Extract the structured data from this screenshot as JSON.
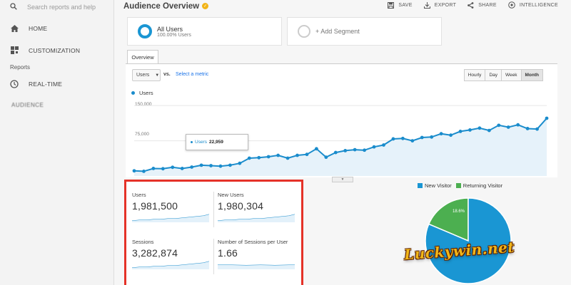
{
  "sidebar": {
    "search_placeholder": "Search reports and help",
    "items": [
      {
        "label": "HOME",
        "icon": "home-icon"
      },
      {
        "label": "CUSTOMIZATION",
        "icon": "dashboard-icon"
      }
    ],
    "section_header": "Reports",
    "realtime": {
      "label": "REAL-TIME",
      "icon": "clock-icon"
    },
    "blurred_item": "AUDIENCE"
  },
  "header": {
    "title": "Audience Overview",
    "toolbar": [
      {
        "label": "SAVE",
        "icon": "save-icon"
      },
      {
        "label": "EXPORT",
        "icon": "export-icon"
      },
      {
        "label": "SHARE",
        "icon": "share-icon"
      },
      {
        "label": "INTELLIGENCE",
        "icon": "intelligence-icon"
      }
    ]
  },
  "segments": {
    "active": {
      "title": "All Users",
      "subtitle": "100.00% Users"
    },
    "add_label": "+ Add Segment"
  },
  "overview": {
    "tab_label": "Overview",
    "metric": "Users",
    "vs": "vs.",
    "select_metric": "Select a metric",
    "periods": [
      "Hourly",
      "Day",
      "Week",
      "Month"
    ],
    "active_period": "Month",
    "legend": "Users",
    "y_labels": [
      "150,000",
      "75,000"
    ],
    "tooltip": {
      "label": "Users",
      "value": "22,959"
    }
  },
  "chart_data": {
    "type": "line",
    "series": [
      {
        "name": "Users",
        "values": [
          11000,
          10000,
          16000,
          15500,
          18500,
          16000,
          19000,
          22959,
          22000,
          21000,
          23000,
          27000,
          38000,
          39000,
          41000,
          44000,
          38000,
          44000,
          46000,
          58000,
          40000,
          50000,
          54000,
          56000,
          55000,
          62000,
          66000,
          79000,
          80000,
          75000,
          82000,
          83000,
          90000,
          87000,
          95000,
          98000,
          102000,
          97000,
          108000,
          104000,
          109000,
          101000,
          100000,
          123000
        ]
      }
    ],
    "ylim": [
      0,
      170000
    ],
    "y_ticks": [
      75000,
      150000
    ],
    "grid": true,
    "color": "#1a8ccc"
  },
  "kpis": [
    {
      "label": "Users",
      "value": "1,981,500"
    },
    {
      "label": "New Users",
      "value": "1,980,304"
    },
    {
      "label": "Sessions",
      "value": "3,282,874"
    },
    {
      "label": "Number of Sessions per User",
      "value": "1.66"
    }
  ],
  "pie": {
    "legend": [
      {
        "label": "New Visitor",
        "color": "#1a96d3"
      },
      {
        "label": "Returning Visitor",
        "color": "#4caf50"
      }
    ],
    "slices": [
      {
        "label": "New Visitor",
        "value": 81.4,
        "color": "#1a96d3"
      },
      {
        "label": "Returning Visitor",
        "value": 18.6,
        "color": "#4caf50"
      }
    ],
    "slice_label": "18.6%"
  },
  "watermark": "Luckywin.net"
}
